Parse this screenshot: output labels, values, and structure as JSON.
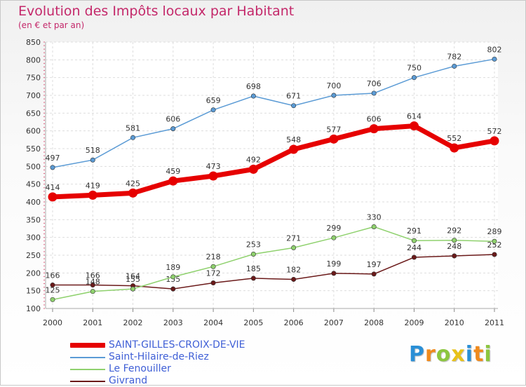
{
  "header": {
    "title": "Evolution des Impôts locaux par Habitant",
    "subtitle": "(en € et par an)"
  },
  "logo": {
    "letters": [
      "P",
      "r",
      "o",
      "x",
      "i",
      "t",
      "i"
    ],
    "colors": [
      "#2a8fd6",
      "#f08a1c",
      "#8cc63f",
      "#e8c21a",
      "#2a8fd6",
      "#f08a1c",
      "#8cc63f"
    ]
  },
  "chart_data": {
    "type": "line",
    "title": "Evolution des Impôts locaux par Habitant",
    "subtitle": "(en € et par an)",
    "xlabel": "",
    "ylabel": "",
    "x": [
      "2000",
      "2001",
      "2002",
      "2003",
      "2004",
      "2005",
      "2006",
      "2007",
      "2008",
      "2009",
      "2010",
      "2011"
    ],
    "ylim": [
      100,
      850
    ],
    "yticks": [
      100,
      150,
      200,
      250,
      300,
      350,
      400,
      450,
      500,
      550,
      600,
      650,
      700,
      750,
      800,
      850
    ],
    "grid": true,
    "legend_position": "bottom-left",
    "series": [
      {
        "name": "SAINT-GILLES-CROIX-DE-VIE",
        "color": "#e60000",
        "emphasis": true,
        "values": [
          414,
          419,
          425,
          459,
          473,
          492,
          548,
          577,
          606,
          614,
          552,
          572
        ]
      },
      {
        "name": "Saint-Hilaire-de-Riez",
        "color": "#5b9bd5",
        "values": [
          497,
          518,
          581,
          606,
          659,
          698,
          671,
          700,
          706,
          750,
          782,
          802
        ]
      },
      {
        "name": "Le Fenouiller",
        "color": "#8fd16e",
        "values": [
          125,
          148,
          155,
          189,
          218,
          253,
          271,
          299,
          330,
          291,
          292,
          289
        ]
      },
      {
        "name": "Givrand",
        "color": "#6b1a1a",
        "values": [
          166,
          166,
          164,
          155,
          172,
          185,
          182,
          199,
          197,
          244,
          248,
          252
        ]
      }
    ]
  }
}
